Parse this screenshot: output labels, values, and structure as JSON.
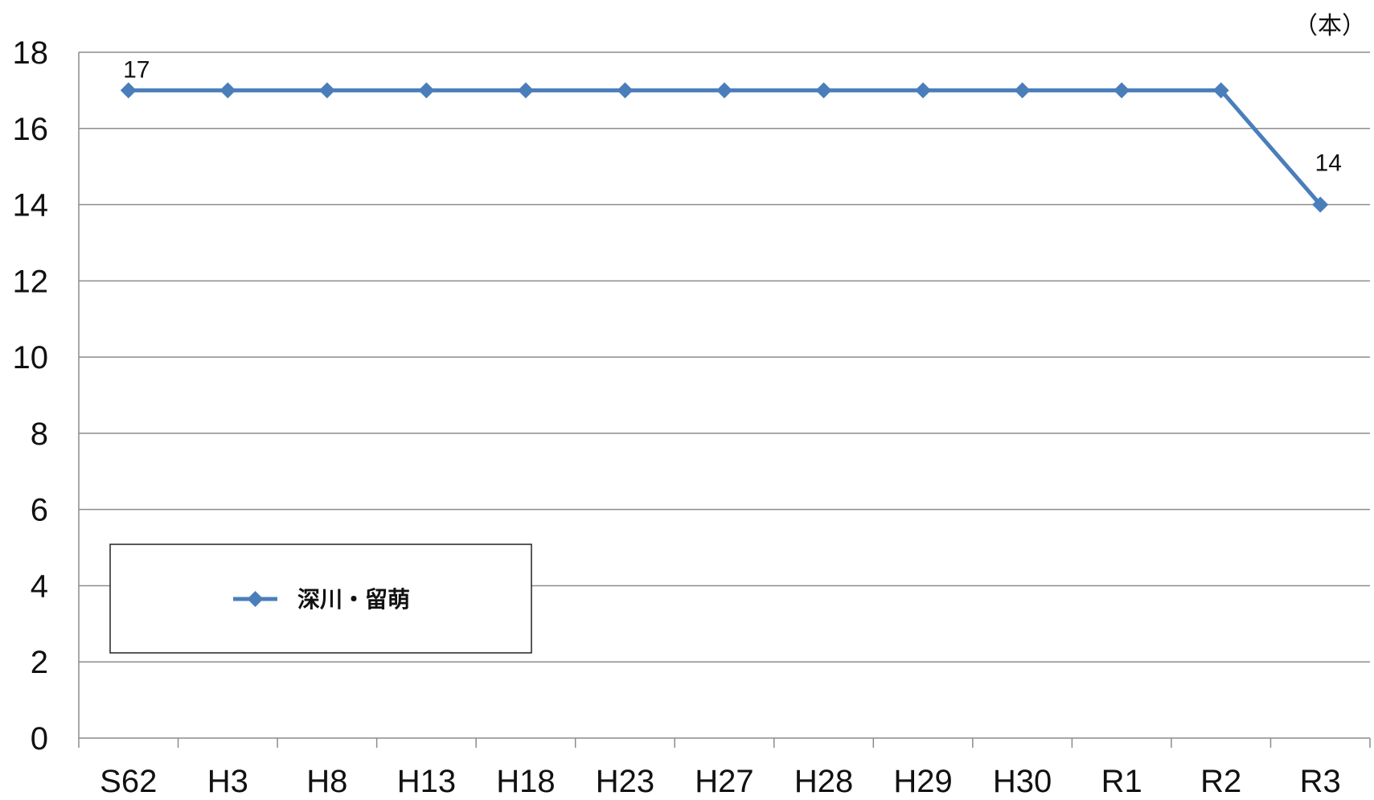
{
  "chart_data": {
    "type": "line",
    "categories": [
      "S62",
      "H3",
      "H8",
      "H13",
      "H18",
      "H23",
      "H27",
      "H28",
      "H29",
      "H30",
      "R1",
      "R2",
      "R3"
    ],
    "series": [
      {
        "name": "深川・留萌",
        "values": [
          17,
          17,
          17,
          17,
          17,
          17,
          17,
          17,
          17,
          17,
          17,
          17,
          14
        ],
        "color": "#4a7ebb",
        "marker": "diamond"
      }
    ],
    "data_labels": [
      {
        "index": 0,
        "text": "17"
      },
      {
        "index": 12,
        "text": "14"
      }
    ],
    "unit_label": "（本）",
    "yticks": [
      "0",
      "2",
      "4",
      "6",
      "8",
      "10",
      "12",
      "14",
      "16",
      "18"
    ],
    "ylim": [
      0,
      18
    ],
    "grid": true,
    "legend_position": "bottom-left"
  }
}
